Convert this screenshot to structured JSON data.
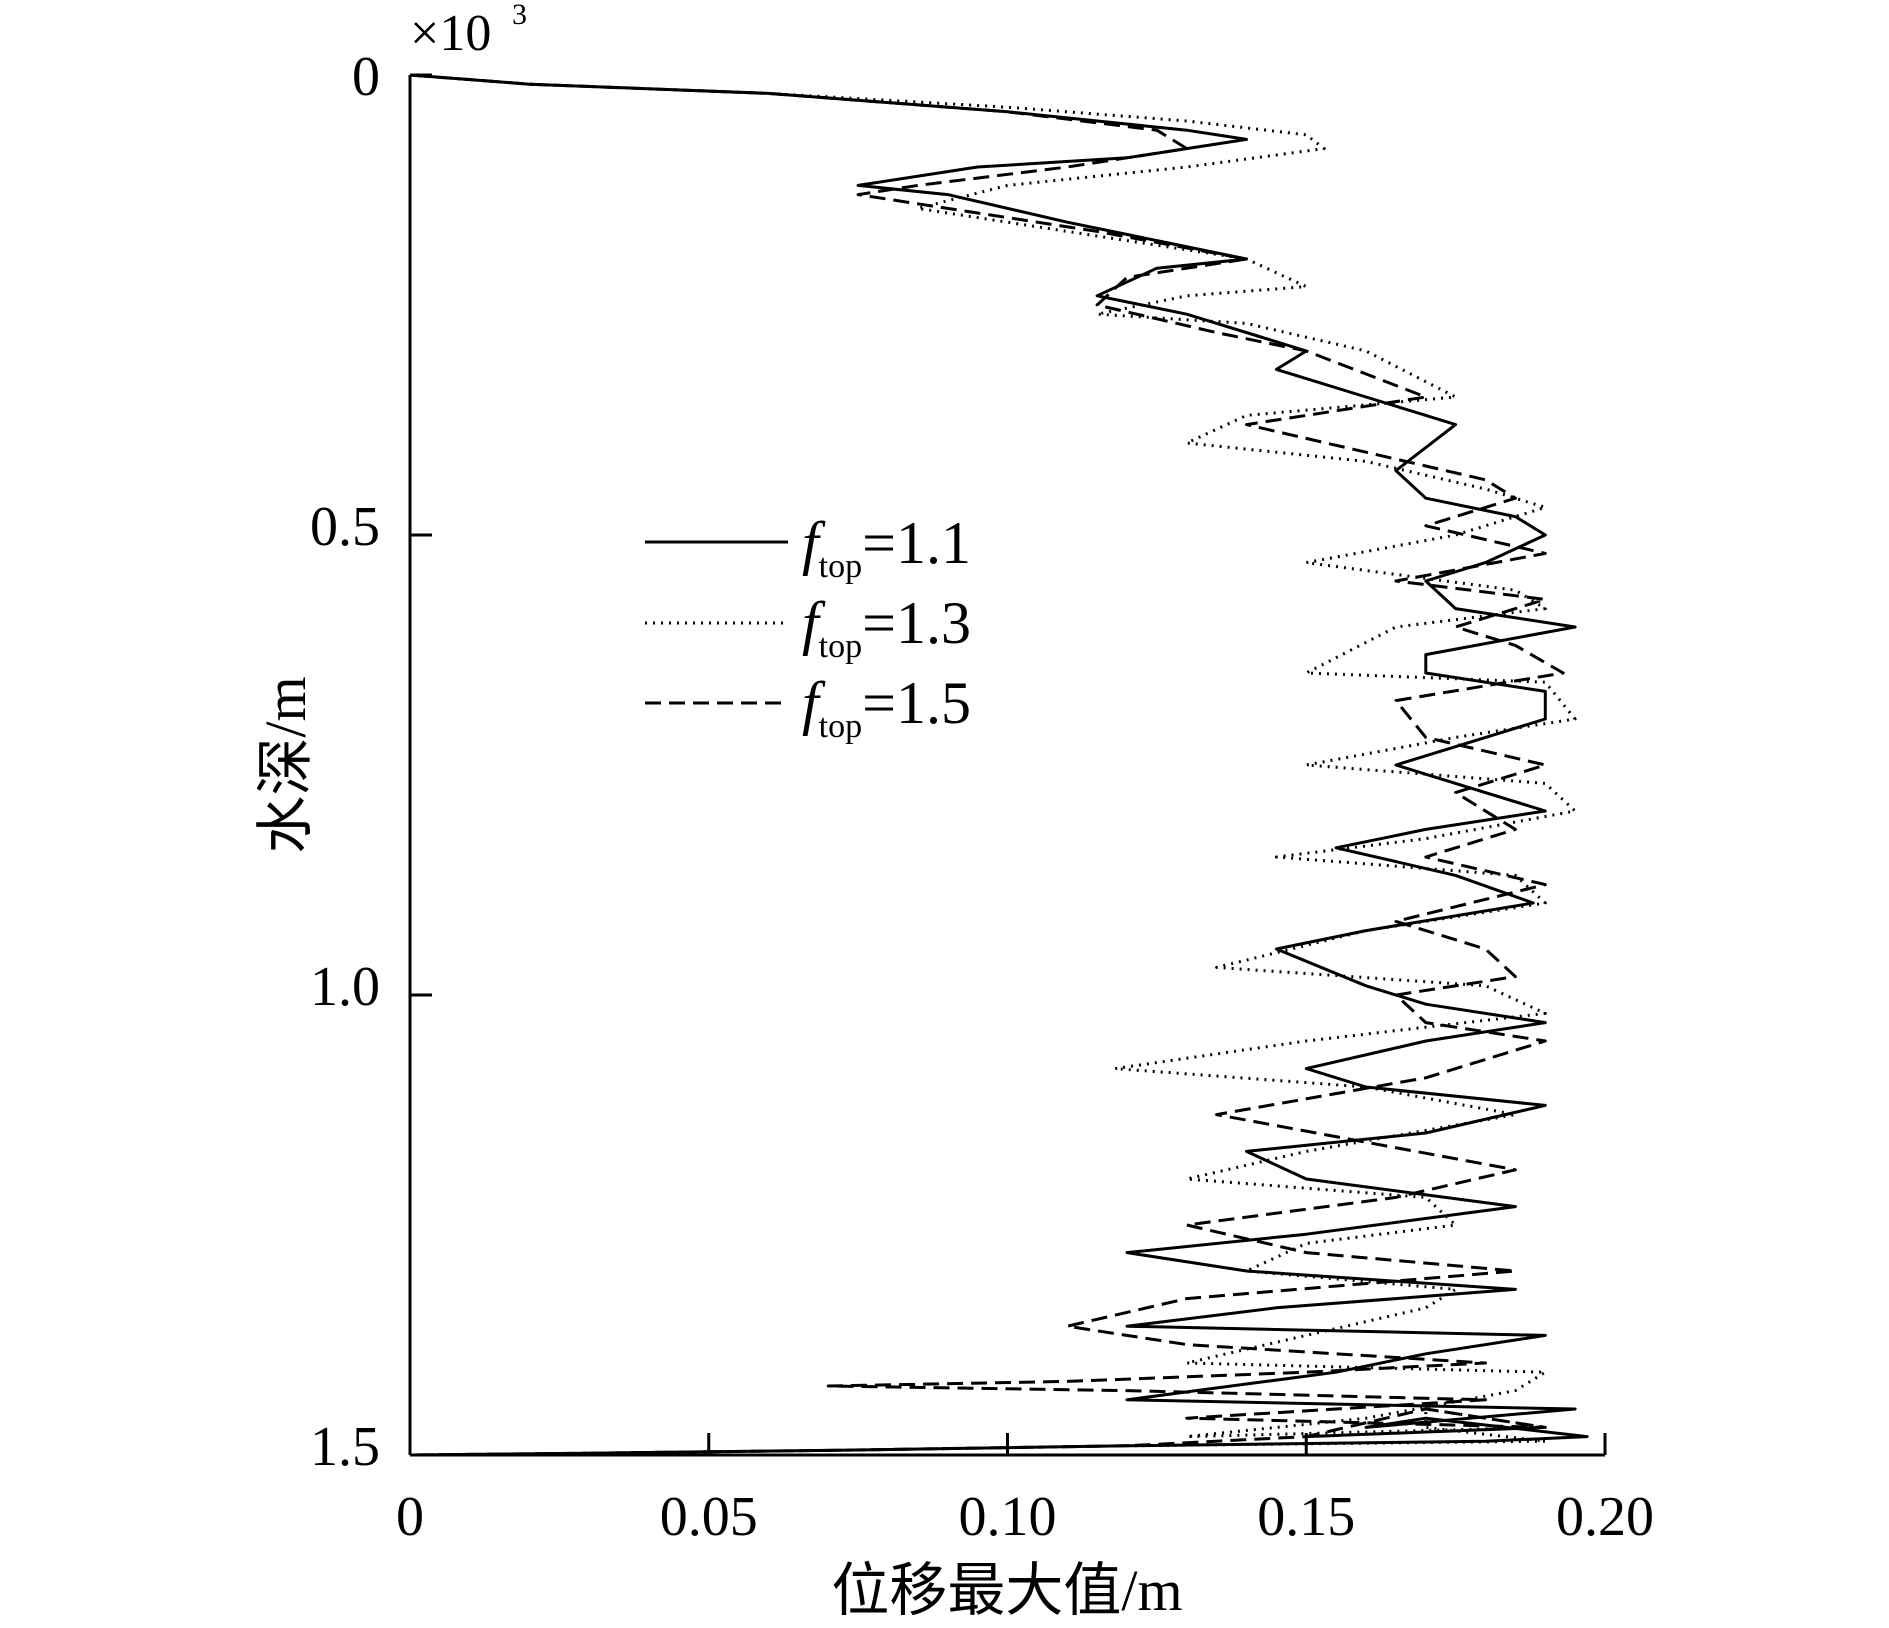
{
  "chart_data": {
    "type": "line",
    "xlabel": "位移最大值/m",
    "ylabel": "水深/m",
    "y_multiplier": {
      "base": "×10",
      "exponent": "3"
    },
    "xlim": [
      0,
      0.2
    ],
    "ylim": [
      0,
      1.5
    ],
    "y_inverted": true,
    "x_ticks": [
      "0",
      "0.05",
      "0.10",
      "0.15",
      "0.20"
    ],
    "y_ticks": [
      "0",
      "0.5",
      "1.0",
      "1.5"
    ],
    "legend_position": "center-left",
    "series": [
      {
        "name": "f_top=1.1",
        "legend": {
          "f": "f",
          "sub": "top",
          "rest": "=1.1"
        },
        "style": "solid",
        "x": [
          0,
          0.02,
          0.06,
          0.1,
          0.13,
          0.14,
          0.12,
          0.095,
          0.075,
          0.09,
          0.11,
          0.125,
          0.14,
          0.125,
          0.115,
          0.13,
          0.15,
          0.145,
          0.16,
          0.175,
          0.165,
          0.17,
          0.185,
          0.19,
          0.18,
          0.17,
          0.175,
          0.195,
          0.17,
          0.17,
          0.19,
          0.19,
          0.18,
          0.165,
          0.175,
          0.19,
          0.17,
          0.155,
          0.175,
          0.188,
          0.16,
          0.145,
          0.16,
          0.17,
          0.19,
          0.17,
          0.15,
          0.16,
          0.19,
          0.17,
          0.14,
          0.15,
          0.185,
          0.15,
          0.12,
          0.14,
          0.185,
          0.145,
          0.12,
          0.19,
          0.17,
          0.155,
          0.12,
          0.195,
          0.16,
          0.17,
          0.197,
          0.18,
          0.12,
          0.07,
          0.03,
          0
        ],
        "y": [
          0,
          0.01,
          0.02,
          0.04,
          0.06,
          0.07,
          0.09,
          0.1,
          0.12,
          0.13,
          0.16,
          0.18,
          0.2,
          0.21,
          0.24,
          0.26,
          0.3,
          0.32,
          0.35,
          0.38,
          0.43,
          0.46,
          0.48,
          0.5,
          0.53,
          0.55,
          0.58,
          0.6,
          0.63,
          0.65,
          0.67,
          0.7,
          0.72,
          0.75,
          0.77,
          0.8,
          0.82,
          0.84,
          0.87,
          0.9,
          0.93,
          0.95,
          0.99,
          1.01,
          1.03,
          1.05,
          1.08,
          1.1,
          1.12,
          1.15,
          1.17,
          1.2,
          1.23,
          1.26,
          1.28,
          1.3,
          1.32,
          1.34,
          1.36,
          1.37,
          1.39,
          1.41,
          1.44,
          1.45,
          1.47,
          1.46,
          1.48,
          1.485,
          1.49,
          1.495,
          1.498,
          1.5
        ]
      },
      {
        "name": "f_top=1.3",
        "legend": {
          "f": "f",
          "sub": "top",
          "rest": "=1.3"
        },
        "style": "dotted",
        "x": [
          0,
          0.02,
          0.06,
          0.1,
          0.13,
          0.15,
          0.153,
          0.13,
          0.1,
          0.085,
          0.1,
          0.12,
          0.14,
          0.15,
          0.13,
          0.115,
          0.14,
          0.16,
          0.175,
          0.14,
          0.13,
          0.16,
          0.18,
          0.19,
          0.175,
          0.15,
          0.185,
          0.19,
          0.165,
          0.15,
          0.19,
          0.195,
          0.175,
          0.15,
          0.19,
          0.195,
          0.17,
          0.145,
          0.185,
          0.19,
          0.16,
          0.135,
          0.18,
          0.19,
          0.15,
          0.118,
          0.16,
          0.185,
          0.15,
          0.13,
          0.17,
          0.175,
          0.15,
          0.14,
          0.175,
          0.17,
          0.15,
          0.13,
          0.19,
          0.185,
          0.16,
          0.13,
          0.19,
          0.17,
          0.17,
          0.19,
          0.12,
          0.07,
          0.03,
          0
        ],
        "y": [
          0,
          0.01,
          0.02,
          0.035,
          0.05,
          0.065,
          0.08,
          0.1,
          0.12,
          0.145,
          0.16,
          0.18,
          0.2,
          0.23,
          0.24,
          0.26,
          0.27,
          0.3,
          0.35,
          0.37,
          0.4,
          0.42,
          0.45,
          0.47,
          0.5,
          0.53,
          0.56,
          0.58,
          0.6,
          0.65,
          0.66,
          0.7,
          0.72,
          0.75,
          0.77,
          0.8,
          0.83,
          0.85,
          0.87,
          0.9,
          0.93,
          0.97,
          0.99,
          1.02,
          1.05,
          1.08,
          1.1,
          1.13,
          1.17,
          1.2,
          1.22,
          1.25,
          1.27,
          1.3,
          1.32,
          1.34,
          1.37,
          1.4,
          1.41,
          1.43,
          1.46,
          1.48,
          1.47,
          1.45,
          1.47,
          1.485,
          1.49,
          1.495,
          1.498,
          1.5
        ]
      },
      {
        "name": "f_top=1.5",
        "legend": {
          "f": "f",
          "sub": "top",
          "rest": "=1.5"
        },
        "style": "dashed",
        "x": [
          0,
          0.02,
          0.06,
          0.1,
          0.125,
          0.13,
          0.11,
          0.085,
          0.075,
          0.095,
          0.115,
          0.14,
          0.12,
          0.115,
          0.135,
          0.15,
          0.17,
          0.14,
          0.16,
          0.18,
          0.185,
          0.17,
          0.19,
          0.165,
          0.19,
          0.175,
          0.185,
          0.193,
          0.165,
          0.17,
          0.19,
          0.175,
          0.185,
          0.17,
          0.19,
          0.165,
          0.18,
          0.185,
          0.165,
          0.17,
          0.19,
          0.17,
          0.135,
          0.16,
          0.185,
          0.165,
          0.13,
          0.15,
          0.185,
          0.13,
          0.11,
          0.13,
          0.18,
          0.15,
          0.11,
          0.07,
          0.12,
          0.18,
          0.13,
          0.19,
          0.17,
          0.15,
          0.19,
          0.15,
          0.12,
          0.07,
          0.03,
          0
        ],
        "y": [
          0,
          0.01,
          0.02,
          0.04,
          0.06,
          0.08,
          0.1,
          0.12,
          0.13,
          0.15,
          0.17,
          0.2,
          0.22,
          0.25,
          0.28,
          0.3,
          0.35,
          0.38,
          0.41,
          0.44,
          0.46,
          0.49,
          0.52,
          0.55,
          0.57,
          0.6,
          0.62,
          0.65,
          0.68,
          0.72,
          0.75,
          0.78,
          0.82,
          0.85,
          0.88,
          0.92,
          0.95,
          0.98,
          1.0,
          1.03,
          1.05,
          1.09,
          1.13,
          1.16,
          1.19,
          1.22,
          1.25,
          1.28,
          1.3,
          1.33,
          1.36,
          1.38,
          1.4,
          1.41,
          1.42,
          1.425,
          1.43,
          1.44,
          1.46,
          1.47,
          1.45,
          1.48,
          1.47,
          1.48,
          1.49,
          1.495,
          1.498,
          1.5
        ]
      }
    ]
  }
}
